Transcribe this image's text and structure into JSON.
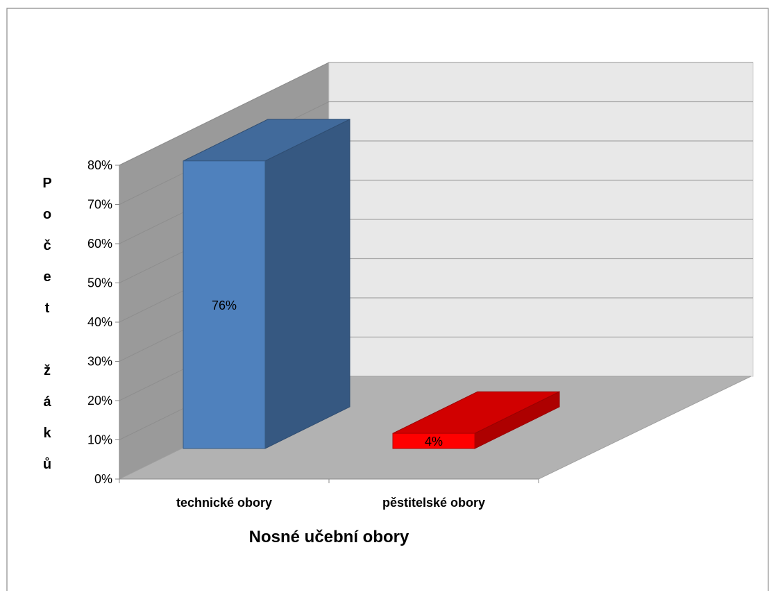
{
  "chart_data": {
    "type": "bar",
    "style": "3d-column",
    "categories": [
      "technické obory",
      "pěstitelské obory"
    ],
    "values": [
      76,
      4
    ],
    "value_unit": "%",
    "data_labels": [
      "76%",
      "4%"
    ],
    "bar_colors": [
      "#4f81bd",
      "#ff0000"
    ],
    "xlabel": "Nosné učební obory",
    "ylabel": "Počet žáků",
    "ylim": [
      0,
      80
    ],
    "yticks": [
      "0%",
      "10%",
      "20%",
      "30%",
      "40%",
      "50%",
      "60%",
      "70%",
      "80%"
    ],
    "grid": true,
    "legend": "none"
  }
}
